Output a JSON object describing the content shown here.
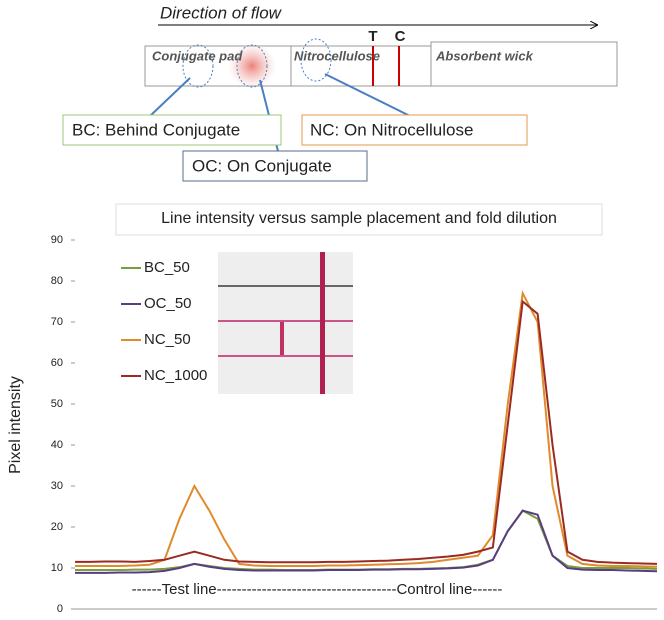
{
  "diagram": {
    "flow": "Direction of flow",
    "t": "T",
    "c": "C",
    "conjugate": "Conjugate pad",
    "nitro": "Nitrocellulose",
    "wick": "Absorbent wick",
    "bc": "BC:  Behind Conjugate",
    "oc": "OC:  On Conjugate",
    "nc": "NC:  On Nitrocellulose"
  },
  "chart_data": {
    "type": "line",
    "title": "Line intensity versus sample placement and fold dilution",
    "y_label": "Pixel intensity",
    "annotation": "------Test line------------------------------------Control line------",
    "categories": [
      null,
      null,
      null,
      null,
      null,
      null,
      null,
      null,
      null,
      null,
      null,
      null,
      null,
      null,
      null,
      null,
      null,
      null,
      null,
      null,
      null,
      null,
      null,
      null,
      null,
      null,
      null,
      null,
      null,
      null,
      null,
      null,
      null,
      null,
      null,
      null,
      null,
      null,
      null,
      null
    ],
    "ylim": [
      0,
      90
    ],
    "yticks": [
      0,
      10,
      20,
      30,
      40,
      50,
      60,
      70,
      80,
      90
    ],
    "series": [
      {
        "name": "BC_50",
        "color": "#77a03a",
        "values": [
          9.5,
          9.5,
          9.5,
          9.5,
          9.6,
          9.6,
          9.8,
          10.2,
          11,
          10.5,
          10,
          9.8,
          9.6,
          9.6,
          9.5,
          9.5,
          9.5,
          9.6,
          9.6,
          9.6,
          9.7,
          9.7,
          9.8,
          9.8,
          9.9,
          10,
          10.2,
          10.8,
          12,
          19,
          24,
          22,
          13,
          10.5,
          10,
          10,
          10,
          10,
          9.9,
          9.8
        ]
      },
      {
        "name": "OC_50",
        "color": "#5a3c85",
        "values": [
          8.8,
          8.8,
          8.8,
          8.9,
          8.9,
          9,
          9.3,
          10,
          11,
          10.3,
          9.8,
          9.5,
          9.4,
          9.4,
          9.4,
          9.4,
          9.4,
          9.5,
          9.5,
          9.5,
          9.6,
          9.6,
          9.7,
          9.7,
          9.8,
          9.9,
          10.1,
          10.6,
          12,
          19,
          24,
          23,
          13,
          10,
          9.6,
          9.5,
          9.5,
          9.4,
          9.3,
          9.2
        ]
      },
      {
        "name": "NC_50",
        "color": "#e08a2c",
        "values": [
          10.5,
          10.5,
          10.5,
          10.5,
          10.6,
          10.8,
          12,
          22,
          30,
          24,
          17,
          11,
          10.6,
          10.5,
          10.5,
          10.5,
          10.5,
          10.6,
          10.6,
          10.7,
          10.8,
          10.9,
          11,
          11.2,
          11.5,
          12,
          12.5,
          13,
          18,
          50,
          77,
          70,
          30,
          13,
          11,
          10.6,
          10.5,
          10.5,
          10.4,
          10.3
        ]
      },
      {
        "name": "NC_1000",
        "color": "#9b2a22",
        "values": [
          11.5,
          11.5,
          11.6,
          11.6,
          11.5,
          11.7,
          12,
          13,
          14,
          13,
          12,
          11.6,
          11.5,
          11.4,
          11.4,
          11.4,
          11.4,
          11.5,
          11.5,
          11.6,
          11.7,
          11.8,
          12,
          12.2,
          12.5,
          12.8,
          13.2,
          14,
          15,
          45,
          75,
          72,
          40,
          14,
          12,
          11.5,
          11.3,
          11.2,
          11.1,
          11
        ]
      }
    ]
  }
}
